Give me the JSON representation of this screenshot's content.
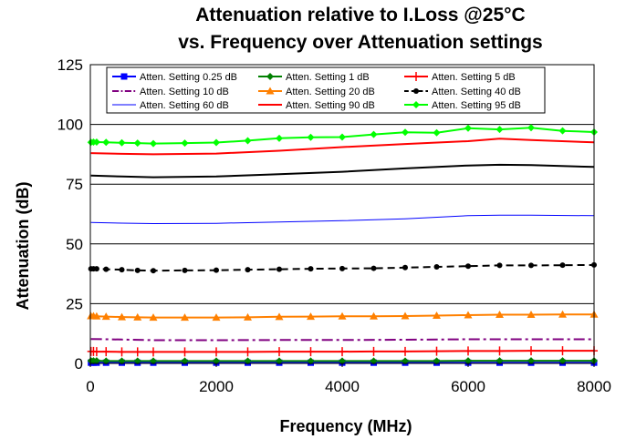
{
  "chart_data": {
    "type": "line",
    "title": "Attenuation relative to I.Loss @25°C",
    "subtitle": "vs. Frequency over Attenuation settings",
    "xlabel": "Frequency (MHz)",
    "ylabel": "Attenuation (dB)",
    "xlim": [
      0,
      8000
    ],
    "ylim": [
      0,
      125
    ],
    "xticks": [
      "0",
      "2000",
      "4000",
      "6000",
      "8000"
    ],
    "yticks": [
      "0",
      "25",
      "50",
      "75",
      "100",
      "125"
    ],
    "grid": "horizontal",
    "legend_position": "top-inside",
    "series": [
      {
        "name": "Atten. Setting 0.25 dB",
        "color": "#0000ff",
        "style": "solid",
        "marker": "square",
        "x": [
          10,
          50,
          100,
          250,
          500,
          750,
          1000,
          1500,
          2000,
          2500,
          3000,
          3500,
          4000,
          4500,
          5000,
          5500,
          6000,
          6500,
          7000,
          7500,
          8000
        ],
        "y": [
          0.3,
          0.3,
          0.3,
          0.3,
          0.3,
          0.3,
          0.3,
          0.3,
          0.3,
          0.3,
          0.3,
          0.3,
          0.3,
          0.3,
          0.3,
          0.3,
          0.3,
          0.3,
          0.3,
          0.3,
          0.3
        ]
      },
      {
        "name": "Atten. Setting 1 dB",
        "color": "#008000",
        "style": "solid",
        "marker": "diamond",
        "x": [
          10,
          50,
          100,
          250,
          500,
          750,
          1000,
          1500,
          2000,
          2500,
          3000,
          3500,
          4000,
          4500,
          5000,
          5500,
          6000,
          6500,
          7000,
          7500,
          8000
        ],
        "y": [
          1.1,
          1.1,
          1.1,
          1.0,
          1.0,
          1.0,
          1.0,
          1.0,
          1.0,
          1.0,
          1.0,
          1.0,
          1.0,
          1.0,
          1.0,
          1.0,
          1.1,
          1.1,
          1.1,
          1.1,
          1.1
        ]
      },
      {
        "name": "Atten. Setting 5 dB",
        "color": "#ff0000",
        "style": "solid",
        "marker": "plus",
        "x": [
          10,
          50,
          100,
          250,
          500,
          750,
          1000,
          1500,
          2000,
          2500,
          3000,
          3500,
          4000,
          4500,
          5000,
          5500,
          6000,
          6500,
          7000,
          7500,
          8000
        ],
        "y": [
          5.0,
          5.0,
          4.9,
          4.9,
          4.8,
          4.8,
          4.8,
          4.8,
          4.8,
          4.8,
          4.9,
          4.9,
          4.9,
          5.0,
          5.0,
          5.1,
          5.2,
          5.2,
          5.3,
          5.3,
          5.3
        ]
      },
      {
        "name": "Atten. Setting 10 dB",
        "color": "#800080",
        "style": "dashdot",
        "marker": "none",
        "x": [
          10,
          500,
          1000,
          2000,
          3000,
          4000,
          5000,
          6000,
          6500,
          7000,
          8000
        ],
        "y": [
          10.2,
          10.0,
          9.7,
          9.7,
          9.8,
          9.8,
          9.9,
          10.1,
          10.1,
          10.1,
          10.1
        ]
      },
      {
        "name": "Atten. Setting 20 dB",
        "color": "#ff8000",
        "style": "solid",
        "marker": "triangle",
        "x": [
          10,
          50,
          100,
          250,
          500,
          750,
          1000,
          1500,
          2000,
          2500,
          3000,
          3500,
          4000,
          4500,
          5000,
          5500,
          6000,
          6500,
          7000,
          7500,
          8000
        ],
        "y": [
          19.8,
          19.8,
          19.7,
          19.6,
          19.4,
          19.3,
          19.2,
          19.2,
          19.2,
          19.3,
          19.5,
          19.6,
          19.7,
          19.7,
          19.8,
          20.0,
          20.2,
          20.4,
          20.4,
          20.5,
          20.5
        ]
      },
      {
        "name": "Atten. Setting 40 dB",
        "color": "#000000",
        "style": "dashed",
        "marker": "circle",
        "x": [
          10,
          50,
          100,
          250,
          500,
          750,
          1000,
          1500,
          2000,
          2500,
          3000,
          3500,
          4000,
          4500,
          5000,
          5500,
          6000,
          6500,
          7000,
          7500,
          8000
        ],
        "y": [
          39.6,
          39.6,
          39.6,
          39.4,
          39.2,
          38.9,
          38.8,
          38.9,
          39.0,
          39.2,
          39.4,
          39.6,
          39.7,
          39.8,
          40.1,
          40.4,
          40.7,
          41.0,
          41.0,
          41.1,
          41.2
        ]
      },
      {
        "name": "Atten. Setting 60 dB",
        "color": "#0000ff",
        "style": "thin",
        "marker": "none",
        "x": [
          10,
          500,
          1000,
          2000,
          3000,
          4000,
          5000,
          6000,
          6500,
          7000,
          8000
        ],
        "y": [
          59.0,
          58.7,
          58.5,
          58.6,
          59.2,
          59.7,
          60.5,
          61.8,
          62.0,
          62.0,
          61.8
        ]
      },
      {
        "name": "Atten. Setting 90 dB",
        "color": "#ff0000",
        "style": "solid",
        "marker": "none",
        "x": [
          10,
          500,
          1000,
          2000,
          3000,
          4000,
          5000,
          6000,
          6500,
          7000,
          8000
        ],
        "y": [
          88.0,
          87.7,
          87.5,
          87.8,
          89.0,
          90.5,
          91.8,
          93.0,
          94.0,
          93.5,
          92.5
        ]
      },
      {
        "name": "",
        "color": "#000000",
        "style": "solid",
        "marker": "none",
        "x": [
          10,
          500,
          1000,
          2000,
          3000,
          4000,
          5000,
          6000,
          6500,
          7000,
          8000
        ],
        "y": [
          78.6,
          78.2,
          77.9,
          78.2,
          79.2,
          80.2,
          81.6,
          82.8,
          83.1,
          83.0,
          82.2
        ]
      },
      {
        "name": "Atten. Setting 95 dB",
        "color": "#00ff00",
        "style": "solid",
        "marker": "diamond",
        "x": [
          10,
          50,
          100,
          250,
          500,
          750,
          1000,
          1500,
          2000,
          2500,
          3000,
          3500,
          4000,
          4500,
          5000,
          5500,
          6000,
          6500,
          7000,
          7500,
          8000
        ],
        "y": [
          92.5,
          92.6,
          92.6,
          92.5,
          92.3,
          92.2,
          92.0,
          92.2,
          92.4,
          93.2,
          94.2,
          94.6,
          94.7,
          95.8,
          96.7,
          96.5,
          98.4,
          97.9,
          98.6,
          97.3,
          96.8
        ]
      }
    ],
    "legend_order": [
      0,
      1,
      2,
      3,
      4,
      5,
      6,
      7,
      9
    ]
  }
}
